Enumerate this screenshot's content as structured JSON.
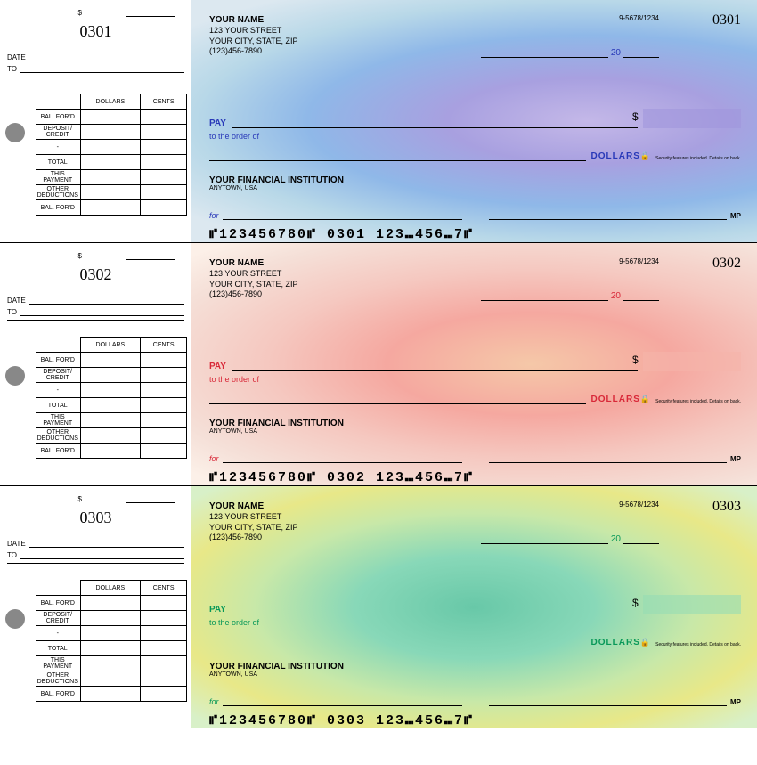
{
  "checks": [
    {
      "number": "0301",
      "color_class": "blue",
      "accent_color": "#2838b8",
      "payer_name": "YOUR NAME",
      "payer_street": "123 YOUR STREET",
      "payer_city": "YOUR CITY, STATE, ZIP",
      "payer_phone": "(123)456-7890",
      "routing_code": "9-5678/1234",
      "century": "20",
      "pay_label": "PAY",
      "order_label": "to the order of",
      "dollars_label": "DOLLARS",
      "security_note": "Security features included. Details on back.",
      "bank_name": "YOUR FINANCIAL INSTITUTION",
      "bank_city": "ANYTOWN, USA",
      "memo_label": "for",
      "mp_label": "MP",
      "micr": "⑈123456780⑈  0301   123⑉456⑉7⑈",
      "stub": {
        "date_label": "DATE",
        "to_label": "TO",
        "dollars_hdr": "DOLLARS",
        "cents_hdr": "CENTS",
        "rows": [
          "BAL. FOR'D",
          "DEPOSIT/ CREDIT",
          "-",
          "TOTAL",
          "THIS PAYMENT",
          "OTHER DEDUCTIONS",
          "BAL. FOR'D"
        ]
      }
    },
    {
      "number": "0302",
      "color_class": "red",
      "accent_color": "#d82838",
      "payer_name": "YOUR NAME",
      "payer_street": "123 YOUR STREET",
      "payer_city": "YOUR CITY, STATE, ZIP",
      "payer_phone": "(123)456-7890",
      "routing_code": "9-5678/1234",
      "century": "20",
      "pay_label": "PAY",
      "order_label": "to the order of",
      "dollars_label": "DOLLARS",
      "security_note": "Security features included. Details on back.",
      "bank_name": "YOUR FINANCIAL INSTITUTION",
      "bank_city": "ANYTOWN, USA",
      "memo_label": "for",
      "mp_label": "MP",
      "micr": "⑈123456780⑈  0302   123⑉456⑉7⑈",
      "stub": {
        "date_label": "DATE",
        "to_label": "TO",
        "dollars_hdr": "DOLLARS",
        "cents_hdr": "CENTS",
        "rows": [
          "BAL. FOR'D",
          "DEPOSIT/ CREDIT",
          "-",
          "TOTAL",
          "THIS PAYMENT",
          "OTHER DEDUCTIONS",
          "BAL. FOR'D"
        ]
      }
    },
    {
      "number": "0303",
      "color_class": "green",
      "accent_color": "#089858",
      "payer_name": "YOUR NAME",
      "payer_street": "123 YOUR STREET",
      "payer_city": "YOUR CITY, STATE, ZIP",
      "payer_phone": "(123)456-7890",
      "routing_code": "9-5678/1234",
      "century": "20",
      "pay_label": "PAY",
      "order_label": "to the order of",
      "dollars_label": "DOLLARS",
      "security_note": "Security features included. Details on back.",
      "bank_name": "YOUR FINANCIAL INSTITUTION",
      "bank_city": "ANYTOWN, USA",
      "memo_label": "for",
      "mp_label": "MP",
      "micr": "⑈123456780⑈  0303   123⑉456⑉7⑈",
      "stub": {
        "date_label": "DATE",
        "to_label": "TO",
        "dollars_hdr": "DOLLARS",
        "cents_hdr": "CENTS",
        "rows": [
          "BAL. FOR'D",
          "DEPOSIT/ CREDIT",
          "-",
          "TOTAL",
          "THIS PAYMENT",
          "OTHER DEDUCTIONS",
          "BAL. FOR'D"
        ]
      }
    }
  ]
}
